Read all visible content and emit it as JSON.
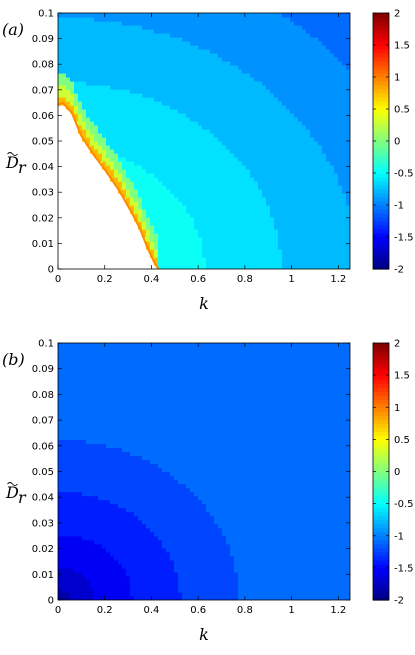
{
  "chart_data": [
    {
      "type": "heatmap",
      "panel_label": "(a)",
      "xlabel": "k",
      "ylabel_main": "D",
      "ylabel_sub": "r",
      "xlim": [
        0,
        1.25
      ],
      "ylim": [
        0,
        0.1
      ],
      "x_ticks": [
        "0",
        "0.2",
        "0.4",
        "0.6",
        "0.8",
        "1",
        "1.2"
      ],
      "y_ticks": [
        "0",
        "0.01",
        "0.02",
        "0.03",
        "0.04",
        "0.05",
        "0.06",
        "0.07",
        "0.08",
        "0.09",
        "0.1"
      ],
      "colorbar": {
        "range": [
          -2,
          2
        ],
        "ticks": [
          "-2",
          "-1.5",
          "-1",
          "-0.5",
          "0",
          "0.5",
          "1",
          "1.5",
          "2"
        ],
        "colormap": "jet"
      },
      "undefined_region_boundary": [
        [
          0,
          0.064
        ],
        [
          0.02,
          0.065
        ],
        [
          0.06,
          0.061
        ],
        [
          0.1,
          0.052
        ],
        [
          0.15,
          0.045
        ],
        [
          0.2,
          0.039
        ],
        [
          0.26,
          0.031
        ],
        [
          0.31,
          0.023
        ],
        [
          0.35,
          0.016
        ],
        [
          0.38,
          0.009
        ],
        [
          0.41,
          0.003
        ],
        [
          0.43,
          0
        ]
      ],
      "value_samples": [
        {
          "k": 0.0,
          "Dr": 0.065,
          "value": 0.7
        },
        {
          "k": 0.0,
          "Dr": 0.1,
          "value": -0.3
        },
        {
          "k": 0.3,
          "Dr": 0.05,
          "value": -0.35
        },
        {
          "k": 0.6,
          "Dr": 0.05,
          "value": -0.65
        },
        {
          "k": 1.0,
          "Dr": 0.05,
          "value": -0.8
        },
        {
          "k": 1.25,
          "Dr": 0.0,
          "value": -0.85
        }
      ]
    },
    {
      "type": "heatmap",
      "panel_label": "(b)",
      "xlabel": "k",
      "ylabel_main": "D",
      "ylabel_sub": "r",
      "xlim": [
        0,
        1.25
      ],
      "ylim": [
        0,
        0.1
      ],
      "x_ticks": [
        "0",
        "0.2",
        "0.4",
        "0.6",
        "0.8",
        "1",
        "1.2"
      ],
      "y_ticks": [
        "0",
        "0.01",
        "0.02",
        "0.03",
        "0.04",
        "0.05",
        "0.06",
        "0.07",
        "0.08",
        "0.09",
        "0.1"
      ],
      "colorbar": {
        "range": [
          -2,
          2
        ],
        "ticks": [
          "-2",
          "-1.5",
          "-1",
          "-0.5",
          "0",
          "0.5",
          "1",
          "1.5",
          "2"
        ],
        "colormap": "jet"
      },
      "value_samples": [
        {
          "k": 0.0,
          "Dr": 0.0,
          "value": -1.9
        },
        {
          "k": 0.1,
          "Dr": 0.02,
          "value": -1.5
        },
        {
          "k": 0.3,
          "Dr": 0.05,
          "value": -1.25
        },
        {
          "k": 0.6,
          "Dr": 0.1,
          "value": -1.15
        },
        {
          "k": 1.0,
          "Dr": 0.05,
          "value": -1.1
        },
        {
          "k": 1.25,
          "Dr": 0.0,
          "value": -1.1
        }
      ]
    }
  ]
}
